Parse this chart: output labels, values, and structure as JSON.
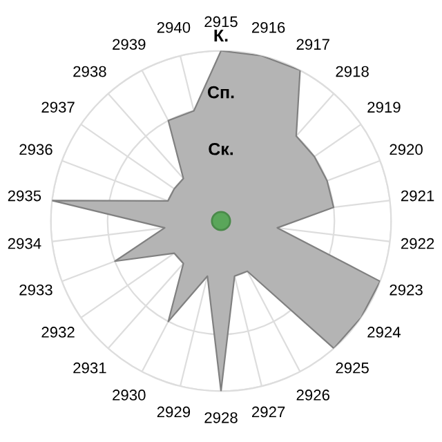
{
  "chart_data": {
    "type": "radar",
    "categories": [
      "2915",
      "2916",
      "2917",
      "2918",
      "2919",
      "2920",
      "2921",
      "2922",
      "2923",
      "2924",
      "2925",
      "2926",
      "2927",
      "2928",
      "2929",
      "2930",
      "2931",
      "2932",
      "2933",
      "2934",
      "2935",
      "2936",
      "2937",
      "2938",
      "2939",
      "2940"
    ],
    "series": [
      {
        "color": "#b4b4b4",
        "values": [
          3,
          3,
          3,
          2,
          2,
          2,
          2,
          1,
          3,
          3,
          3,
          1,
          1,
          3,
          1,
          2,
          1,
          1,
          2,
          1,
          3,
          1,
          1,
          1,
          2,
          2
        ]
      }
    ],
    "ylim": [
      0,
      3
    ],
    "yticks": [
      {
        "value": 1,
        "label": "Ск."
      },
      {
        "value": 2,
        "label": "Сп."
      },
      {
        "value": 3,
        "label": "К."
      }
    ],
    "grid": true
  }
}
